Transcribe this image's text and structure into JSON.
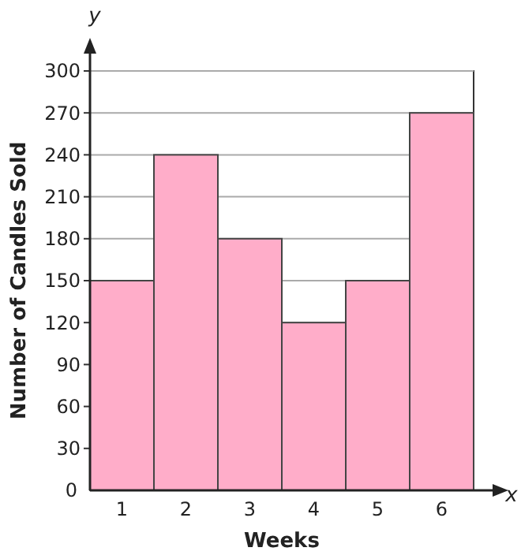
{
  "chart_data": {
    "type": "bar",
    "xlabel": "Weeks",
    "ylabel": "Number of Candles Sold",
    "categories": [
      "1",
      "2",
      "3",
      "4",
      "5",
      "6"
    ],
    "values": [
      150,
      240,
      180,
      120,
      150,
      270
    ],
    "color": "#ffadc9",
    "ylim": [
      0,
      300
    ],
    "yticks": [
      0,
      30,
      60,
      90,
      120,
      150,
      180,
      210,
      240,
      270,
      300
    ],
    "grid": "y",
    "annotations": [
      "x",
      "y"
    ]
  }
}
